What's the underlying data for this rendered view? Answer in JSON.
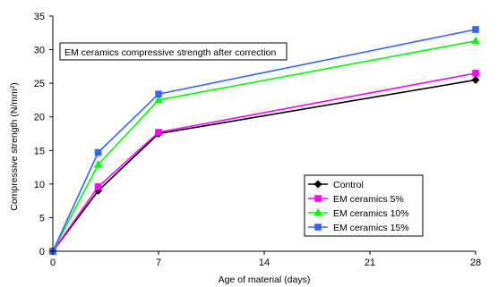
{
  "chart_data": {
    "type": "line",
    "title": "",
    "xlabel": "Age of material (days)",
    "ylabel": "Compressive strength (N/mm²)",
    "xlim": [
      0,
      28
    ],
    "ylim": [
      0,
      35
    ],
    "xticks": [
      0,
      7,
      14,
      21,
      28
    ],
    "yticks": [
      0,
      5,
      10,
      15,
      20,
      25,
      30,
      35
    ],
    "grid": false,
    "legend_position": "lower-right",
    "annotation": "EM ceramics compressive strength after correction",
    "series": [
      {
        "name": "Control",
        "color": "#000000",
        "marker": "diamond",
        "x": [
          0,
          3,
          7,
          28
        ],
        "y": [
          0,
          9.0,
          17.5,
          25.5
        ]
      },
      {
        "name": "EM ceramics 5%",
        "color": "#ff00ff",
        "marker": "square",
        "x": [
          0,
          3,
          7,
          28
        ],
        "y": [
          0,
          9.6,
          17.7,
          26.5
        ]
      },
      {
        "name": "EM ceramics 10%",
        "color": "#00ff00",
        "marker": "triangle",
        "x": [
          0,
          3,
          7,
          28
        ],
        "y": [
          0,
          12.9,
          22.5,
          31.3
        ]
      },
      {
        "name": "EM ceramics 15%",
        "color": "#3366ff",
        "marker": "square",
        "x": [
          0,
          3,
          7,
          28
        ],
        "y": [
          0,
          14.7,
          23.4,
          33.0
        ]
      }
    ]
  }
}
